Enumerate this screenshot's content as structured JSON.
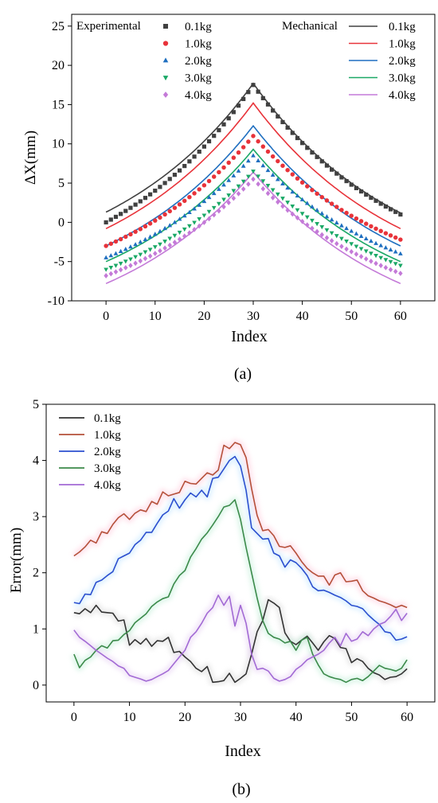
{
  "chart_data": [
    {
      "type": "scatter+line",
      "panel_label": "(a)",
      "xlabel": "Index",
      "ylabel": "ΔX(mm)",
      "xlim": [
        -7,
        67
      ],
      "ylim": [
        -10,
        26.5
      ],
      "xticks": [
        0,
        10,
        20,
        30,
        40,
        50,
        60
      ],
      "yticks": [
        -10,
        -5,
        0,
        5,
        10,
        15,
        20,
        25
      ],
      "grid": false,
      "legend_experimental_title": "Experimental",
      "legend_mechanical_title": "Mechanical",
      "experimental": [
        {
          "name": "0.1kg",
          "marker": "square",
          "color": "#404040",
          "start": 0.0,
          "peak": 17.5,
          "end": 1.0
        },
        {
          "name": "1.0kg",
          "marker": "circle",
          "color": "#e8333a",
          "start": -3.0,
          "peak": 11.0,
          "end": -2.2
        },
        {
          "name": "2.0kg",
          "marker": "triangle-up",
          "color": "#1f6fc0",
          "start": -4.5,
          "peak": 8.5,
          "end": -4.0
        },
        {
          "name": "3.0kg",
          "marker": "triangle-down",
          "color": "#1aa866",
          "start": -6.0,
          "peak": 6.5,
          "end": -5.5
        },
        {
          "name": "4.0kg",
          "marker": "diamond",
          "color": "#c47ad8",
          "start": -6.8,
          "peak": 5.5,
          "end": -6.5
        }
      ],
      "mechanical": [
        {
          "name": "0.1kg",
          "color": "#404040",
          "start": 1.3,
          "peak": 17.7,
          "end": 1.2
        },
        {
          "name": "1.0kg",
          "color": "#e8333a",
          "start": -0.8,
          "peak": 15.2,
          "end": -0.8
        },
        {
          "name": "2.0kg",
          "color": "#1f6fc0",
          "start": -3.0,
          "peak": 12.3,
          "end": -3.0
        },
        {
          "name": "3.0kg",
          "color": "#1aa866",
          "start": -5.0,
          "peak": 9.3,
          "end": -5.0
        },
        {
          "name": "4.0kg",
          "color": "#c47ad8",
          "start": -7.8,
          "peak": 6.4,
          "end": -7.8
        }
      ]
    },
    {
      "type": "line",
      "panel_label": "(b)",
      "xlabel": "Index",
      "ylabel": "Error(mm)",
      "xlim": [
        -5,
        65
      ],
      "ylim": [
        -0.3,
        5
      ],
      "xticks": [
        0,
        10,
        20,
        30,
        40,
        50,
        60
      ],
      "yticks": [
        0,
        1,
        2,
        3,
        4,
        5
      ],
      "grid": false,
      "x": [
        0,
        1,
        2,
        3,
        4,
        5,
        6,
        7,
        8,
        9,
        10,
        11,
        12,
        13,
        14,
        15,
        16,
        17,
        18,
        19,
        20,
        21,
        22,
        23,
        24,
        25,
        26,
        27,
        28,
        29,
        30,
        31,
        32,
        33,
        34,
        35,
        36,
        37,
        38,
        39,
        40,
        41,
        42,
        43,
        44,
        45,
        46,
        47,
        48,
        49,
        50,
        51,
        52,
        53,
        54,
        55,
        56,
        57,
        58,
        59,
        60
      ],
      "series": [
        {
          "name": "0.1kg",
          "color": "#333333",
          "values": [
            1.29,
            1.27,
            1.36,
            1.29,
            1.42,
            1.3,
            1.29,
            1.28,
            1.14,
            1.16,
            0.71,
            0.81,
            0.73,
            0.83,
            0.69,
            0.79,
            0.78,
            0.85,
            0.58,
            0.6,
            0.5,
            0.42,
            0.3,
            0.24,
            0.33,
            0.05,
            0.06,
            0.08,
            0.21,
            0.05,
            0.12,
            0.2,
            0.55,
            0.95,
            1.15,
            1.52,
            1.46,
            1.38,
            0.93,
            0.78,
            0.72,
            0.8,
            0.87,
            0.75,
            0.62,
            0.77,
            0.88,
            0.83,
            0.67,
            0.65,
            0.4,
            0.47,
            0.42,
            0.3,
            0.22,
            0.18,
            0.1,
            0.14,
            0.15,
            0.2,
            0.29
          ]
        },
        {
          "name": "1.0kg",
          "color": "#b5503a",
          "values": [
            2.3,
            2.37,
            2.46,
            2.58,
            2.53,
            2.73,
            2.7,
            2.86,
            2.98,
            3.05,
            2.95,
            3.06,
            3.12,
            3.09,
            3.27,
            3.22,
            3.44,
            3.37,
            3.4,
            3.43,
            3.63,
            3.59,
            3.58,
            3.68,
            3.78,
            3.74,
            3.83,
            4.27,
            4.21,
            4.32,
            4.28,
            4.05,
            3.5,
            3.02,
            2.75,
            2.77,
            2.66,
            2.47,
            2.45,
            2.48,
            2.35,
            2.2,
            2.08,
            2.0,
            1.94,
            1.94,
            1.78,
            1.96,
            2.0,
            1.84,
            1.85,
            1.87,
            1.68,
            1.59,
            1.55,
            1.5,
            1.47,
            1.43,
            1.38,
            1.42,
            1.38
          ]
        },
        {
          "name": "2.0kg",
          "color": "#2b4fcf",
          "values": [
            1.47,
            1.45,
            1.62,
            1.61,
            1.83,
            1.87,
            1.95,
            2.02,
            2.25,
            2.3,
            2.35,
            2.5,
            2.58,
            2.72,
            2.72,
            2.88,
            3.03,
            3.1,
            3.32,
            3.15,
            3.3,
            3.42,
            3.35,
            3.47,
            3.35,
            3.68,
            3.7,
            3.85,
            4.0,
            4.07,
            3.9,
            3.47,
            2.8,
            2.7,
            2.6,
            2.61,
            2.35,
            2.3,
            2.1,
            2.23,
            2.18,
            2.08,
            1.95,
            1.75,
            1.68,
            1.69,
            1.65,
            1.6,
            1.56,
            1.5,
            1.42,
            1.4,
            1.36,
            1.25,
            1.16,
            1.08,
            0.95,
            0.93,
            0.8,
            0.82,
            0.86
          ]
        },
        {
          "name": "3.0kg",
          "color": "#3b8a4a",
          "values": [
            0.55,
            0.31,
            0.44,
            0.5,
            0.62,
            0.7,
            0.66,
            0.79,
            0.8,
            0.9,
            0.97,
            1.11,
            1.19,
            1.27,
            1.4,
            1.48,
            1.54,
            1.57,
            1.8,
            1.95,
            2.04,
            2.28,
            2.43,
            2.6,
            2.71,
            2.85,
            3.0,
            3.17,
            3.2,
            3.3,
            2.95,
            2.45,
            2.0,
            1.55,
            1.15,
            0.92,
            0.85,
            0.82,
            0.75,
            0.78,
            0.62,
            0.8,
            0.85,
            0.55,
            0.36,
            0.2,
            0.15,
            0.12,
            0.1,
            0.05,
            0.1,
            0.12,
            0.08,
            0.15,
            0.25,
            0.35,
            0.3,
            0.28,
            0.25,
            0.3,
            0.45
          ]
        },
        {
          "name": "4.0kg",
          "color": "#a26ad4",
          "values": [
            0.98,
            0.85,
            0.78,
            0.7,
            0.62,
            0.55,
            0.48,
            0.42,
            0.34,
            0.3,
            0.17,
            0.14,
            0.11,
            0.07,
            0.1,
            0.15,
            0.2,
            0.26,
            0.38,
            0.5,
            0.62,
            0.85,
            0.95,
            1.1,
            1.28,
            1.38,
            1.6,
            1.42,
            1.58,
            1.05,
            1.42,
            1.1,
            0.55,
            0.28,
            0.3,
            0.25,
            0.12,
            0.07,
            0.1,
            0.15,
            0.28,
            0.35,
            0.45,
            0.5,
            0.55,
            0.62,
            0.75,
            0.85,
            0.7,
            0.92,
            0.78,
            0.82,
            0.95,
            0.88,
            1.0,
            1.08,
            1.12,
            1.22,
            1.35,
            1.15,
            1.28
          ]
        }
      ]
    }
  ]
}
